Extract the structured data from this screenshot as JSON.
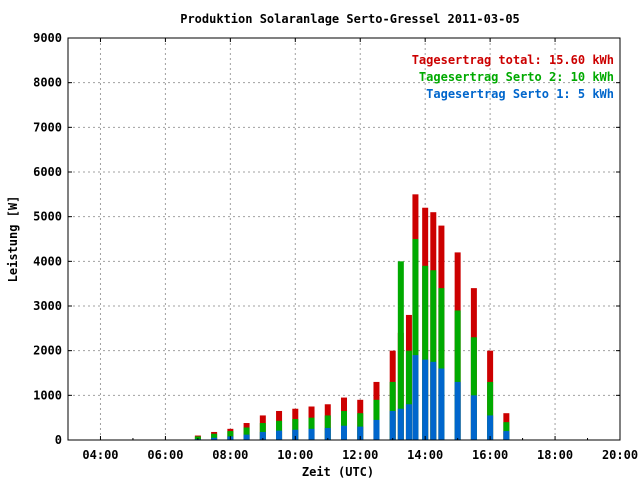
{
  "chart_data": {
    "type": "bar",
    "title": "Produktion Solaranlage Serto-Gressel 2011-03-05",
    "xlabel": "Zeit (UTC)",
    "ylabel": "Leistung [W]",
    "xlim": [
      3,
      20
    ],
    "ylim": [
      0,
      9000
    ],
    "x_ticks": [
      "04:00",
      "06:00",
      "08:00",
      "10:00",
      "12:00",
      "14:00",
      "16:00",
      "18:00",
      "20:00"
    ],
    "y_ticks": [
      "0",
      "1000",
      "2000",
      "3000",
      "4000",
      "5000",
      "6000",
      "7000",
      "8000",
      "9000"
    ],
    "grid": true,
    "legend_position": "top-right",
    "legend": [
      {
        "label": "Tagesertrag total: 15.60 kWh",
        "color": "#cc0000"
      },
      {
        "label": "Tagesertrag Serto 2: 10 kWh",
        "color": "#00aa00"
      },
      {
        "label": "Tagesertrag Serto 1: 5 kWh",
        "color": "#0066cc"
      }
    ],
    "x_hours": [
      6.5,
      7.0,
      7.5,
      8.0,
      8.5,
      9.0,
      9.5,
      10.0,
      10.5,
      11.0,
      11.5,
      12.0,
      12.5,
      13.0,
      13.25,
      13.5,
      13.7,
      14.0,
      14.25,
      14.5,
      15.0,
      15.5,
      16.0,
      16.5,
      17.0
    ],
    "series": [
      {
        "name": "Tagesertrag total: 15.60 kWh",
        "color": "#cc0000",
        "values": [
          0,
          100,
          180,
          250,
          380,
          550,
          650,
          700,
          750,
          800,
          950,
          900,
          1300,
          2000,
          2400,
          2800,
          5500,
          5200,
          5100,
          4800,
          4200,
          3400,
          2000,
          600,
          0
        ]
      },
      {
        "name": "Tagesertrag Serto 2: 10 kWh",
        "color": "#00aa00",
        "values": [
          0,
          80,
          140,
          200,
          280,
          380,
          430,
          470,
          500,
          550,
          650,
          600,
          900,
          1300,
          4000,
          2000,
          4500,
          3900,
          3800,
          3400,
          2900,
          2300,
          1300,
          400,
          0
        ]
      },
      {
        "name": "Tagesertrag Serto 1: 5 kWh",
        "color": "#0066cc",
        "values": [
          0,
          20,
          50,
          80,
          120,
          180,
          210,
          230,
          250,
          270,
          320,
          300,
          450,
          650,
          700,
          800,
          1900,
          1800,
          1750,
          1600,
          1300,
          1000,
          550,
          200,
          0
        ]
      }
    ]
  }
}
